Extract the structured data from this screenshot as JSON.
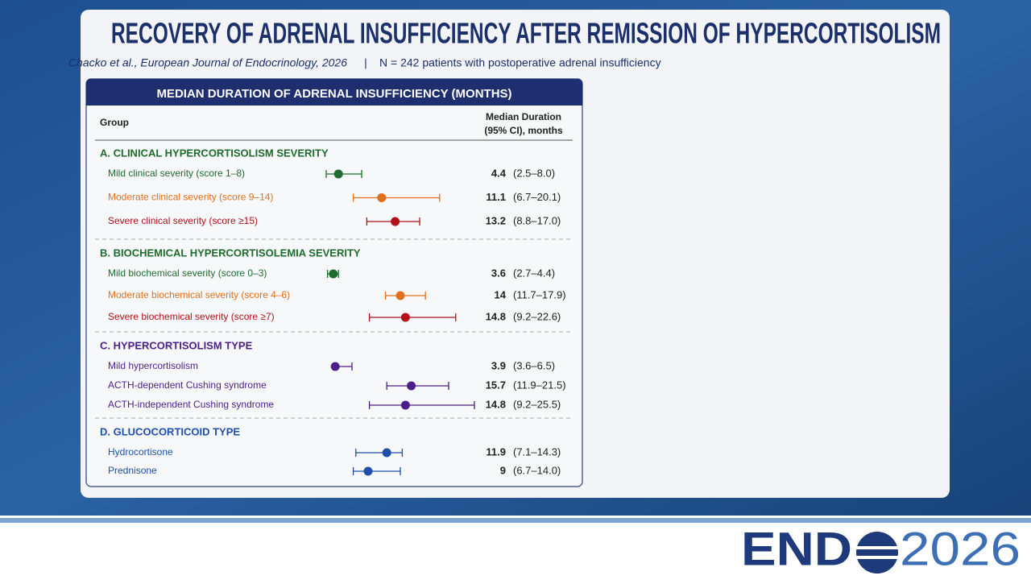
{
  "header": {
    "title": "RECOVERY OF ADRENAL INSUFFICIENCY AFTER REMISSION OF HYPERCORTISOLISM",
    "citation": "Chacko et al., European Journal of Endocrinology, 2026",
    "separator": "|",
    "sample": "N = 242 patients with postoperative adrenal insufficiency"
  },
  "chart_data": {
    "type": "forest",
    "title": "MEDIAN DURATION OF ADRENAL INSUFFICIENCY (MONTHS)",
    "group_column": "Group",
    "value_column": [
      "Median Duration",
      "(95% CI), months"
    ],
    "groups": [
      {
        "name": "A. CLINICAL HYPERCORTISOLISM SEVERITY",
        "color": "#1f6b2e",
        "rows": [
          {
            "label": "Mild clinical severity (score 1–8)",
            "color": "#1f6b2e",
            "value": 4.4,
            "lower": 2.5,
            "upper": 8.0,
            "ci_label": "(2.5–8.0)"
          },
          {
            "label": "Moderate clinical severity (score 9–14)",
            "color": "#e07020",
            "value": 11.1,
            "lower": 6.7,
            "upper": 20.1,
            "ci_label": "(6.7–20.1)"
          },
          {
            "label": "Severe clinical severity (score ≥15)",
            "color": "#b0101a",
            "value": 13.2,
            "lower": 8.8,
            "upper": 17.0,
            "ci_label": "(8.8–17.0)"
          }
        ]
      },
      {
        "name": "B. BIOCHEMICAL HYPERCORTISOLEMIA SEVERITY",
        "color": "#1f6b2e",
        "rows": [
          {
            "label": "Mild biochemical severity (score 0–3)",
            "color": "#1f6b2e",
            "value": 3.6,
            "lower": 2.7,
            "upper": 4.4,
            "ci_label": "(2.7–4.4)"
          },
          {
            "label": "Moderate biochemical severity (score 4–6)",
            "color": "#e07020",
            "value": 14.0,
            "lower": 11.7,
            "upper": 17.9,
            "ci_label": "(11.7–17.9)"
          },
          {
            "label": "Severe biochemical severity (score ≥7)",
            "color": "#b0101a",
            "value": 14.8,
            "lower": 9.2,
            "upper": 22.6,
            "ci_label": "(9.2–22.6)"
          }
        ]
      },
      {
        "name": "C. HYPERCORTISOLISM TYPE",
        "color": "#4b1f8a",
        "rows": [
          {
            "label": "Mild hypercortisolism",
            "color": "#4b1f8a",
            "value": 3.9,
            "lower": 3.6,
            "upper": 6.5,
            "ci_label": "(3.6–6.5)"
          },
          {
            "label": "ACTH-dependent Cushing syndrome",
            "color": "#4b1f8a",
            "value": 15.7,
            "lower": 11.9,
            "upper": 21.5,
            "ci_label": "(11.9–21.5)"
          },
          {
            "label": "ACTH-independent Cushing syndrome",
            "color": "#4b1f8a",
            "value": 14.8,
            "lower": 9.2,
            "upper": 25.5,
            "ci_label": "(9.2–25.5)"
          }
        ]
      },
      {
        "name": "D. GLUCOCORTICOID TYPE",
        "color": "#1f4fa8",
        "rows": [
          {
            "label": "Hydrocortisone",
            "color": "#1f4fa8",
            "value": 11.9,
            "lower": 7.1,
            "upper": 14.3,
            "ci_label": "(7.1–14.3)"
          },
          {
            "label": "Prednisone",
            "color": "#1f4fa8",
            "value": 9.0,
            "lower": 6.7,
            "upper": 14.0,
            "ci_label": "(6.7–14.0)"
          }
        ]
      }
    ]
  },
  "footer": {
    "logo_left": "END",
    "logo_year": "2026"
  }
}
